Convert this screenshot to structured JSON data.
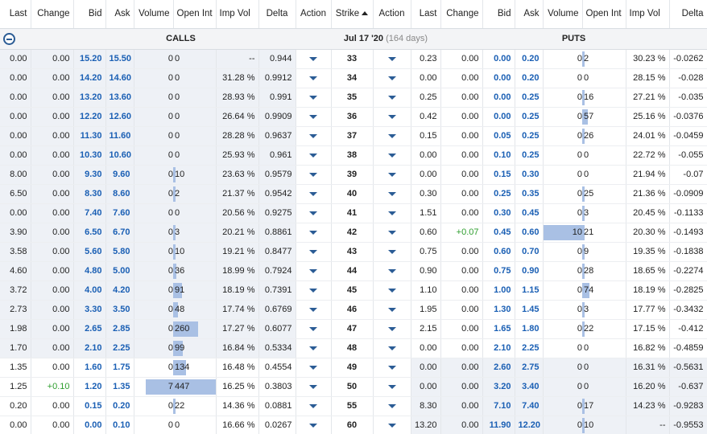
{
  "columns": {
    "calls": [
      "Last",
      "Change",
      "Bid",
      "Ask",
      "Volume",
      "Open Int",
      "Imp Vol",
      "Delta",
      "Action"
    ],
    "strike": "Strike",
    "puts": [
      "Action",
      "Last",
      "Change",
      "Bid",
      "Ask",
      "Volume",
      "Open Int",
      "Imp Vol",
      "Delta"
    ]
  },
  "group": {
    "calls_label": "CALLS",
    "expiry": "Jul 17 '20",
    "days": "(164 days)",
    "puts_label": "PUTS"
  },
  "colors": {
    "accent": "#2b5c95",
    "bid_ask": "#1a5fb4",
    "bar": "#a9c0e4",
    "in_the_money": "#eef1f6",
    "positive": "#2e9e2e"
  },
  "rows": [
    {
      "strike": "33",
      "call": {
        "last": "0.00",
        "change": "0.00",
        "bid": "15.20",
        "ask": "15.50",
        "volume": "0",
        "oi": "0",
        "iv": "--",
        "delta": "0.944"
      },
      "put": {
        "last": "0.23",
        "change": "0.00",
        "bid": "0.00",
        "ask": "0.20",
        "volume": "0",
        "oi": "2",
        "iv": "30.23 %",
        "delta": "-0.0262"
      }
    },
    {
      "strike": "34",
      "call": {
        "last": "0.00",
        "change": "0.00",
        "bid": "14.20",
        "ask": "14.60",
        "volume": "0",
        "oi": "0",
        "iv": "31.28 %",
        "delta": "0.9912"
      },
      "put": {
        "last": "0.00",
        "change": "0.00",
        "bid": "0.00",
        "ask": "0.20",
        "volume": "0",
        "oi": "0",
        "iv": "28.15 %",
        "delta": "-0.028"
      }
    },
    {
      "strike": "35",
      "call": {
        "last": "0.00",
        "change": "0.00",
        "bid": "13.20",
        "ask": "13.60",
        "volume": "0",
        "oi": "0",
        "iv": "28.93 %",
        "delta": "0.991"
      },
      "put": {
        "last": "0.25",
        "change": "0.00",
        "bid": "0.00",
        "ask": "0.25",
        "volume": "0",
        "oi": "16",
        "iv": "27.21 %",
        "delta": "-0.035"
      }
    },
    {
      "strike": "36",
      "call": {
        "last": "0.00",
        "change": "0.00",
        "bid": "12.20",
        "ask": "12.60",
        "volume": "0",
        "oi": "0",
        "iv": "26.64 %",
        "delta": "0.9909"
      },
      "put": {
        "last": "0.42",
        "change": "0.00",
        "bid": "0.00",
        "ask": "0.25",
        "volume": "0",
        "oi": "57",
        "iv": "25.16 %",
        "delta": "-0.0376"
      }
    },
    {
      "strike": "37",
      "call": {
        "last": "0.00",
        "change": "0.00",
        "bid": "11.30",
        "ask": "11.60",
        "volume": "0",
        "oi": "0",
        "iv": "28.28 %",
        "delta": "0.9637"
      },
      "put": {
        "last": "0.15",
        "change": "0.00",
        "bid": "0.05",
        "ask": "0.25",
        "volume": "0",
        "oi": "26",
        "iv": "24.01 %",
        "delta": "-0.0459"
      }
    },
    {
      "strike": "38",
      "call": {
        "last": "0.00",
        "change": "0.00",
        "bid": "10.30",
        "ask": "10.60",
        "volume": "0",
        "oi": "0",
        "iv": "25.93 %",
        "delta": "0.961"
      },
      "put": {
        "last": "0.00",
        "change": "0.00",
        "bid": "0.10",
        "ask": "0.25",
        "volume": "0",
        "oi": "0",
        "iv": "22.72 %",
        "delta": "-0.055"
      }
    },
    {
      "strike": "39",
      "call": {
        "last": "8.00",
        "change": "0.00",
        "bid": "9.30",
        "ask": "9.60",
        "volume": "0",
        "oi": "10",
        "iv": "23.63 %",
        "delta": "0.9579"
      },
      "put": {
        "last": "0.00",
        "change": "0.00",
        "bid": "0.15",
        "ask": "0.30",
        "volume": "0",
        "oi": "0",
        "iv": "21.94 %",
        "delta": "-0.07"
      }
    },
    {
      "strike": "40",
      "call": {
        "last": "6.50",
        "change": "0.00",
        "bid": "8.30",
        "ask": "8.60",
        "volume": "0",
        "oi": "2",
        "iv": "21.37 %",
        "delta": "0.9542"
      },
      "put": {
        "last": "0.30",
        "change": "0.00",
        "bid": "0.25",
        "ask": "0.35",
        "volume": "0",
        "oi": "25",
        "iv": "21.36 %",
        "delta": "-0.0909"
      }
    },
    {
      "strike": "41",
      "call": {
        "last": "0.00",
        "change": "0.00",
        "bid": "7.40",
        "ask": "7.60",
        "volume": "0",
        "oi": "0",
        "iv": "20.56 %",
        "delta": "0.9275"
      },
      "put": {
        "last": "1.51",
        "change": "0.00",
        "bid": "0.30",
        "ask": "0.45",
        "volume": "0",
        "oi": "3",
        "iv": "20.45 %",
        "delta": "-0.1133"
      }
    },
    {
      "strike": "42",
      "call": {
        "last": "3.90",
        "change": "0.00",
        "bid": "6.50",
        "ask": "6.70",
        "volume": "0",
        "oi": "3",
        "iv": "20.21 %",
        "delta": "0.8861"
      },
      "put": {
        "last": "0.60",
        "change": "+0.07",
        "bid": "0.45",
        "ask": "0.60",
        "volume": "10",
        "oi": "21",
        "iv": "20.30 %",
        "delta": "-0.1493"
      }
    },
    {
      "strike": "43",
      "call": {
        "last": "3.58",
        "change": "0.00",
        "bid": "5.60",
        "ask": "5.80",
        "volume": "0",
        "oi": "10",
        "iv": "19.21 %",
        "delta": "0.8477"
      },
      "put": {
        "last": "0.75",
        "change": "0.00",
        "bid": "0.60",
        "ask": "0.70",
        "volume": "0",
        "oi": "9",
        "iv": "19.35 %",
        "delta": "-0.1838"
      }
    },
    {
      "strike": "44",
      "call": {
        "last": "4.60",
        "change": "0.00",
        "bid": "4.80",
        "ask": "5.00",
        "volume": "0",
        "oi": "36",
        "iv": "18.99 %",
        "delta": "0.7924"
      },
      "put": {
        "last": "0.90",
        "change": "0.00",
        "bid": "0.75",
        "ask": "0.90",
        "volume": "0",
        "oi": "28",
        "iv": "18.65 %",
        "delta": "-0.2274"
      }
    },
    {
      "strike": "45",
      "call": {
        "last": "3.72",
        "change": "0.00",
        "bid": "4.00",
        "ask": "4.20",
        "volume": "0",
        "oi": "91",
        "iv": "18.19 %",
        "delta": "0.7391"
      },
      "put": {
        "last": "1.10",
        "change": "0.00",
        "bid": "1.00",
        "ask": "1.15",
        "volume": "0",
        "oi": "74",
        "iv": "18.19 %",
        "delta": "-0.2825"
      }
    },
    {
      "strike": "46",
      "call": {
        "last": "2.73",
        "change": "0.00",
        "bid": "3.30",
        "ask": "3.50",
        "volume": "0",
        "oi": "48",
        "iv": "17.74 %",
        "delta": "0.6769"
      },
      "put": {
        "last": "1.95",
        "change": "0.00",
        "bid": "1.30",
        "ask": "1.45",
        "volume": "0",
        "oi": "3",
        "iv": "17.77 %",
        "delta": "-0.3432"
      }
    },
    {
      "strike": "47",
      "call": {
        "last": "1.98",
        "change": "0.00",
        "bid": "2.65",
        "ask": "2.85",
        "volume": "0",
        "oi": "260",
        "iv": "17.27 %",
        "delta": "0.6077"
      },
      "put": {
        "last": "2.15",
        "change": "0.00",
        "bid": "1.65",
        "ask": "1.80",
        "volume": "0",
        "oi": "22",
        "iv": "17.15 %",
        "delta": "-0.412"
      }
    },
    {
      "strike": "48",
      "call": {
        "last": "1.70",
        "change": "0.00",
        "bid": "2.10",
        "ask": "2.25",
        "volume": "0",
        "oi": "99",
        "iv": "16.84 %",
        "delta": "0.5334"
      },
      "put": {
        "last": "0.00",
        "change": "0.00",
        "bid": "2.10",
        "ask": "2.25",
        "volume": "0",
        "oi": "0",
        "iv": "16.82 %",
        "delta": "-0.4859"
      }
    },
    {
      "strike": "49",
      "call": {
        "last": "1.35",
        "change": "0.00",
        "bid": "1.60",
        "ask": "1.75",
        "volume": "0",
        "oi": "134",
        "iv": "16.48 %",
        "delta": "0.4554"
      },
      "put": {
        "last": "0.00",
        "change": "0.00",
        "bid": "2.60",
        "ask": "2.75",
        "volume": "0",
        "oi": "0",
        "iv": "16.31 %",
        "delta": "-0.5631"
      }
    },
    {
      "strike": "50",
      "call": {
        "last": "1.25",
        "change": "+0.10",
        "bid": "1.20",
        "ask": "1.35",
        "volume": "7",
        "oi": "447",
        "iv": "16.25 %",
        "delta": "0.3803"
      },
      "put": {
        "last": "0.00",
        "change": "0.00",
        "bid": "3.20",
        "ask": "3.40",
        "volume": "0",
        "oi": "0",
        "iv": "16.20 %",
        "delta": "-0.637"
      }
    },
    {
      "strike": "55",
      "call": {
        "last": "0.20",
        "change": "0.00",
        "bid": "0.15",
        "ask": "0.20",
        "volume": "0",
        "oi": "22",
        "iv": "14.36 %",
        "delta": "0.0881"
      },
      "put": {
        "last": "8.30",
        "change": "0.00",
        "bid": "7.10",
        "ask": "7.40",
        "volume": "0",
        "oi": "17",
        "iv": "14.23 %",
        "delta": "-0.9283"
      }
    },
    {
      "strike": "60",
      "call": {
        "last": "0.00",
        "change": "0.00",
        "bid": "0.00",
        "ask": "0.10",
        "volume": "0",
        "oi": "0",
        "iv": "16.66 %",
        "delta": "0.0267"
      },
      "put": {
        "last": "13.20",
        "change": "0.00",
        "bid": "11.90",
        "ask": "12.20",
        "volume": "0",
        "oi": "10",
        "iv": "--",
        "delta": "-0.9553"
      }
    }
  ]
}
